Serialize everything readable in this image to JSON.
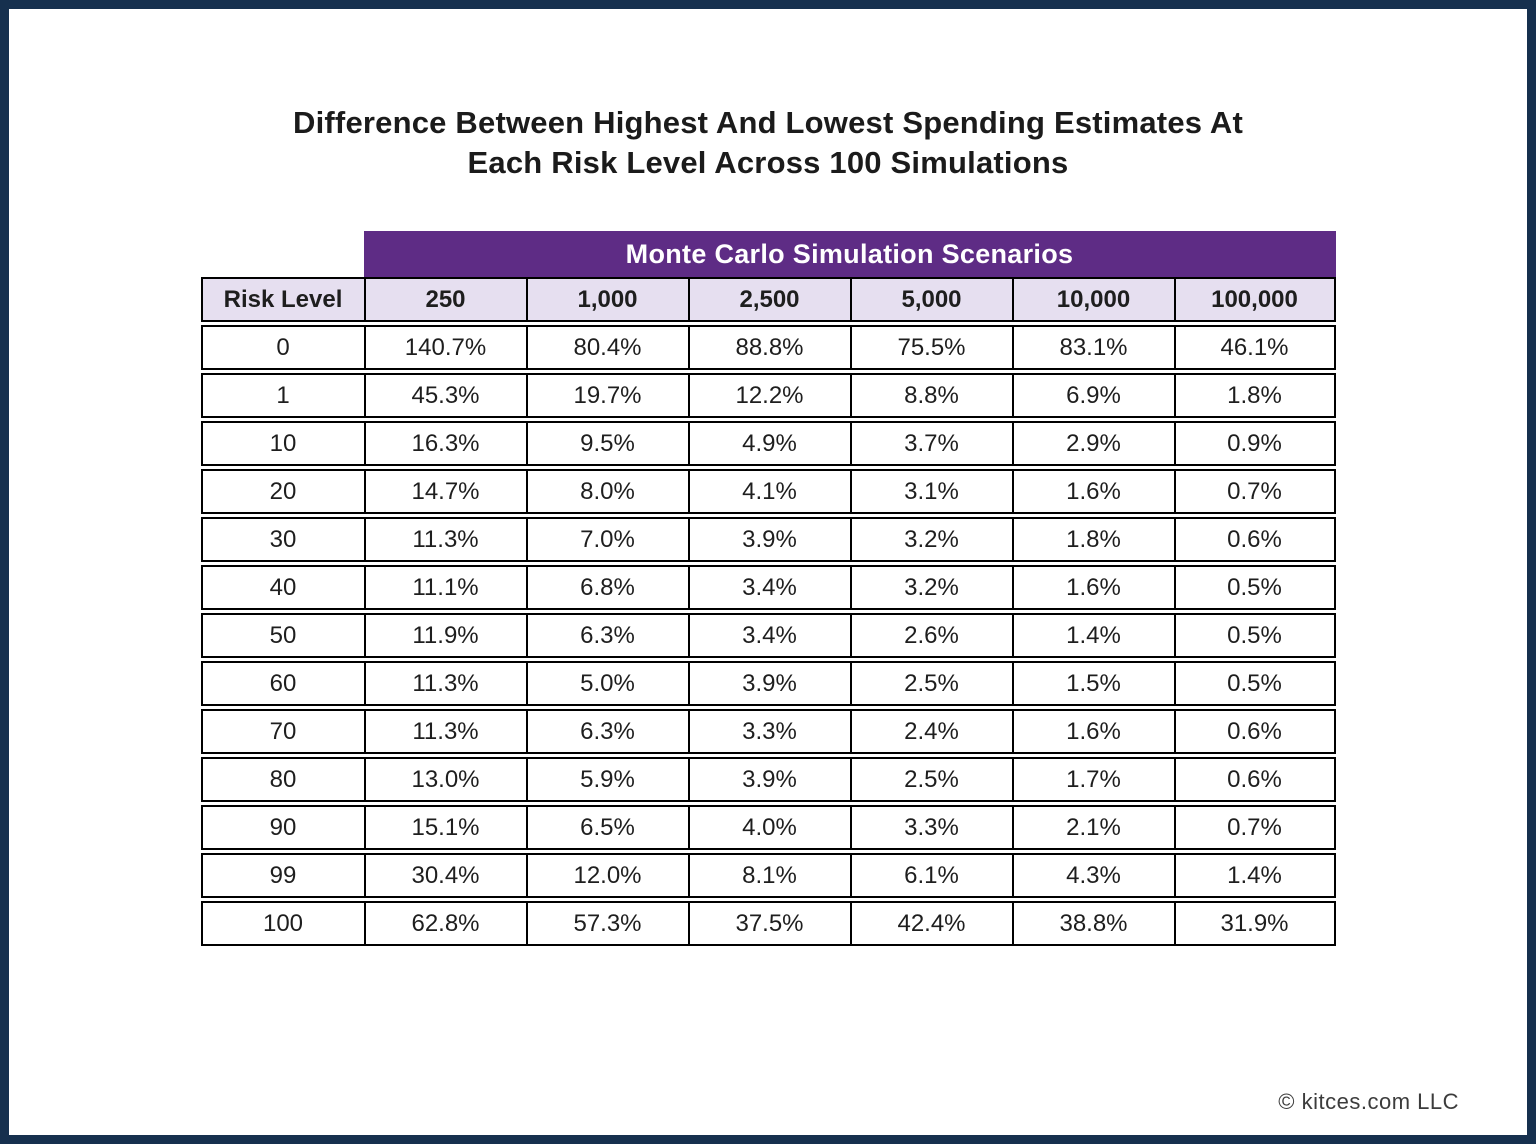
{
  "header": {
    "title_line1": "Difference Between Highest And Lowest Spending Estimates At",
    "title_line2": "Each Risk Level Across 100 Simulations"
  },
  "table": {
    "group_header": "Monte Carlo Simulation Scenarios",
    "row_header_label": "Risk Level",
    "columns": [
      "250",
      "1,000",
      "2,500",
      "5,000",
      "10,000",
      "100,000"
    ],
    "rows": [
      {
        "risk_level": "0",
        "values": [
          "140.7%",
          "80.4%",
          "88.8%",
          "75.5%",
          "83.1%",
          "46.1%"
        ]
      },
      {
        "risk_level": "1",
        "values": [
          "45.3%",
          "19.7%",
          "12.2%",
          "8.8%",
          "6.9%",
          "1.8%"
        ]
      },
      {
        "risk_level": "10",
        "values": [
          "16.3%",
          "9.5%",
          "4.9%",
          "3.7%",
          "2.9%",
          "0.9%"
        ]
      },
      {
        "risk_level": "20",
        "values": [
          "14.7%",
          "8.0%",
          "4.1%",
          "3.1%",
          "1.6%",
          "0.7%"
        ]
      },
      {
        "risk_level": "30",
        "values": [
          "11.3%",
          "7.0%",
          "3.9%",
          "3.2%",
          "1.8%",
          "0.6%"
        ]
      },
      {
        "risk_level": "40",
        "values": [
          "11.1%",
          "6.8%",
          "3.4%",
          "3.2%",
          "1.6%",
          "0.5%"
        ]
      },
      {
        "risk_level": "50",
        "values": [
          "11.9%",
          "6.3%",
          "3.4%",
          "2.6%",
          "1.4%",
          "0.5%"
        ]
      },
      {
        "risk_level": "60",
        "values": [
          "11.3%",
          "5.0%",
          "3.9%",
          "2.5%",
          "1.5%",
          "0.5%"
        ]
      },
      {
        "risk_level": "70",
        "values": [
          "11.3%",
          "6.3%",
          "3.3%",
          "2.4%",
          "1.6%",
          "0.6%"
        ]
      },
      {
        "risk_level": "80",
        "values": [
          "13.0%",
          "5.9%",
          "3.9%",
          "2.5%",
          "1.7%",
          "0.6%"
        ]
      },
      {
        "risk_level": "90",
        "values": [
          "15.1%",
          "6.5%",
          "4.0%",
          "3.3%",
          "2.1%",
          "0.7%"
        ]
      },
      {
        "risk_level": "99",
        "values": [
          "30.4%",
          "12.0%",
          "8.1%",
          "6.1%",
          "4.3%",
          "1.4%"
        ]
      },
      {
        "risk_level": "100",
        "values": [
          "62.8%",
          "57.3%",
          "37.5%",
          "42.4%",
          "38.8%",
          "31.9%"
        ]
      }
    ]
  },
  "footer": {
    "copyright": "© kitces.com LLC"
  },
  "colors": {
    "frame_navy": "#16304E",
    "brand_purple": "#5E2C85",
    "header_lavender": "#E6DFF0",
    "text": "#1E1E1E"
  },
  "chart_data": {
    "type": "table",
    "title": "Difference Between Highest And Lowest Spending Estimates At Each Risk Level Across 100 Simulations",
    "column_group": "Monte Carlo Simulation Scenarios",
    "columns": [
      "Risk Level",
      "250",
      "1,000",
      "2,500",
      "5,000",
      "10,000",
      "100,000"
    ],
    "units": "percent",
    "rows": [
      [
        0,
        140.7,
        80.4,
        88.8,
        75.5,
        83.1,
        46.1
      ],
      [
        1,
        45.3,
        19.7,
        12.2,
        8.8,
        6.9,
        1.8
      ],
      [
        10,
        16.3,
        9.5,
        4.9,
        3.7,
        2.9,
        0.9
      ],
      [
        20,
        14.7,
        8.0,
        4.1,
        3.1,
        1.6,
        0.7
      ],
      [
        30,
        11.3,
        7.0,
        3.9,
        3.2,
        1.8,
        0.6
      ],
      [
        40,
        11.1,
        6.8,
        3.4,
        3.2,
        1.6,
        0.5
      ],
      [
        50,
        11.9,
        6.3,
        3.4,
        2.6,
        1.4,
        0.5
      ],
      [
        60,
        11.3,
        5.0,
        3.9,
        2.5,
        1.5,
        0.5
      ],
      [
        70,
        11.3,
        6.3,
        3.3,
        2.4,
        1.6,
        0.6
      ],
      [
        80,
        13.0,
        5.9,
        3.9,
        2.5,
        1.7,
        0.6
      ],
      [
        90,
        15.1,
        6.5,
        4.0,
        3.3,
        2.1,
        0.7
      ],
      [
        99,
        30.4,
        12.0,
        8.1,
        6.1,
        4.3,
        1.4
      ],
      [
        100,
        62.8,
        57.3,
        37.5,
        42.4,
        38.8,
        31.9
      ]
    ]
  }
}
